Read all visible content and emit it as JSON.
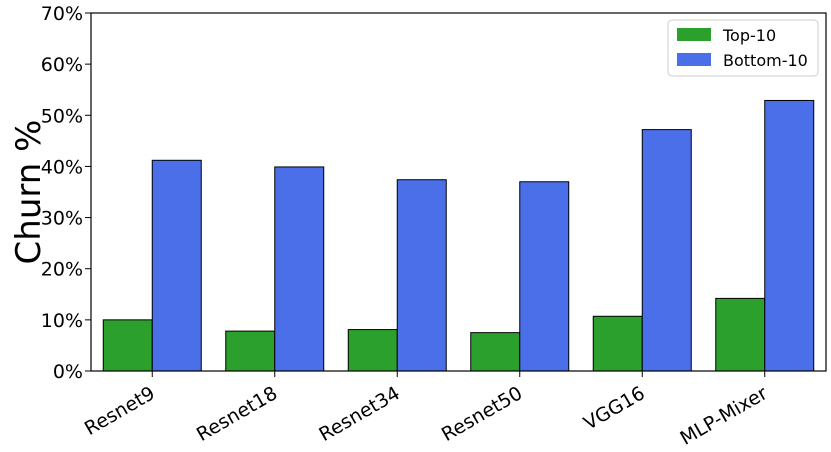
{
  "chart_data": {
    "type": "bar",
    "categories": [
      "Resnet9",
      "Resnet18",
      "Resnet34",
      "Resnet50",
      "VGG16",
      "MLP-Mixer"
    ],
    "series": [
      {
        "name": "Top-10",
        "color": "#2ca02c",
        "values": [
          10.0,
          7.8,
          8.1,
          7.5,
          10.7,
          14.2
        ]
      },
      {
        "name": "Bottom-10",
        "color": "#4a6fe8",
        "values": [
          41.2,
          39.9,
          37.4,
          37.0,
          47.2,
          52.9
        ]
      }
    ],
    "ylabel": "Churn %",
    "xlabel": "",
    "ylim": [
      0,
      70
    ],
    "yticks": [
      0,
      10,
      20,
      30,
      40,
      50,
      60,
      70
    ],
    "ytick_suffix": "%",
    "legend": "top-right",
    "grid": false
  }
}
